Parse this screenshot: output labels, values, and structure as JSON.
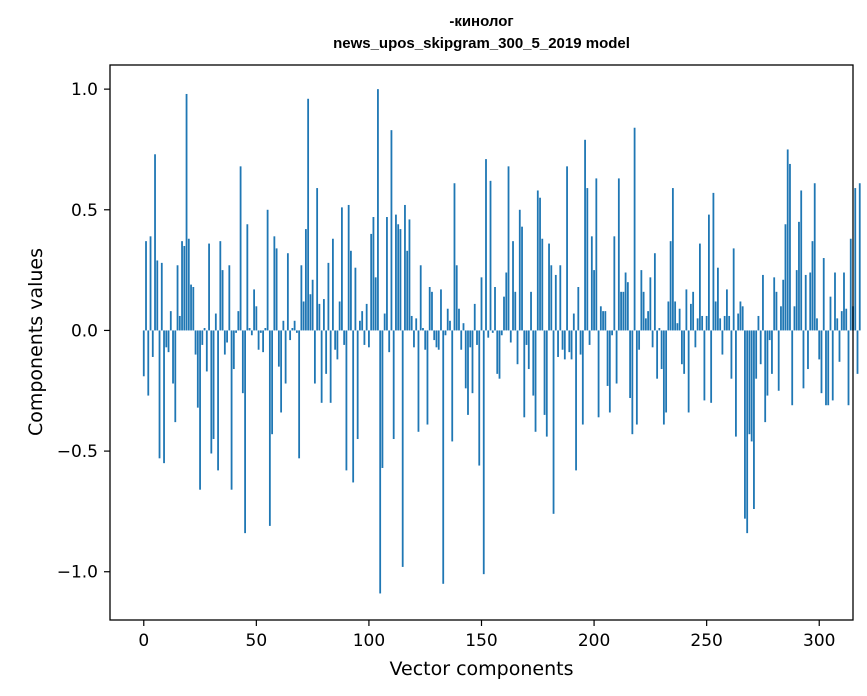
{
  "chart_data": {
    "type": "bar",
    "title_line1": "-кинолог",
    "title_line2": "news_upos_skipgram_300_5_2019 model",
    "xlabel": "Vector components",
    "ylabel": "Components values",
    "xlim": [
      -15,
      315
    ],
    "ylim": [
      -1.2,
      1.1
    ],
    "x_ticks": [
      0,
      50,
      100,
      150,
      200,
      250,
      300
    ],
    "x_tick_labels": [
      "0",
      "50",
      "100",
      "150",
      "200",
      "250",
      "300"
    ],
    "y_ticks": [
      -1.0,
      -0.5,
      0.0,
      0.5,
      1.0
    ],
    "y_tick_labels": [
      "−1.0",
      "−0.5",
      "0.0",
      "0.5",
      "1.0"
    ],
    "bar_color": "#1f77b4",
    "values": [
      -0.19,
      0.37,
      -0.27,
      0.39,
      -0.11,
      0.73,
      0.29,
      -0.53,
      0.28,
      -0.55,
      -0.07,
      -0.09,
      0.08,
      -0.22,
      -0.38,
      0.27,
      0.06,
      0.37,
      0.35,
      0.98,
      0.38,
      0.19,
      0.18,
      -0.1,
      -0.32,
      -0.66,
      -0.06,
      0.01,
      -0.17,
      0.36,
      -0.51,
      -0.45,
      0.07,
      -0.58,
      0.37,
      0.25,
      -0.1,
      -0.05,
      0.27,
      -0.66,
      -0.16,
      -0.01,
      0.08,
      0.68,
      -0.26,
      -0.84,
      0.44,
      0.01,
      -0.02,
      0.17,
      0.1,
      -0.08,
      -0.01,
      -0.09,
      0.01,
      0.5,
      -0.81,
      -0.43,
      0.39,
      0.34,
      -0.15,
      -0.34,
      0.04,
      -0.22,
      0.32,
      -0.04,
      0.01,
      0.04,
      -0.01,
      -0.53,
      0.27,
      0.12,
      0.42,
      0.96,
      0.15,
      0.21,
      -0.22,
      0.59,
      0.11,
      -0.3,
      0.13,
      -0.18,
      0.28,
      -0.3,
      0.38,
      -0.08,
      -0.12,
      0.12,
      0.51,
      -0.06,
      -0.58,
      0.52,
      0.33,
      -0.63,
      0.26,
      -0.45,
      0.04,
      0.08,
      -0.06,
      0.11,
      -0.07,
      0.4,
      0.47,
      0.22,
      1.0,
      -1.09,
      -0.57,
      0.07,
      0.47,
      -0.09,
      0.83,
      -0.45,
      0.48,
      0.44,
      0.42,
      -0.98,
      0.52,
      0.33,
      0.46,
      0.06,
      -0.07,
      0.05,
      -0.42,
      0.27,
      0.01,
      -0.08,
      -0.39,
      0.18,
      0.16,
      -0.04,
      -0.07,
      -0.08,
      0.17,
      -1.05,
      -0.02,
      0.09,
      0.04,
      -0.46,
      0.61,
      0.27,
      0.09,
      -0.08,
      0.03,
      -0.24,
      -0.35,
      -0.07,
      -0.26,
      0.11,
      -0.06,
      -0.56,
      0.22,
      -1.01,
      0.71,
      -0.03,
      0.62,
      -0.01,
      0.18,
      -0.18,
      -0.2,
      -0.02,
      0.14,
      0.24,
      0.68,
      -0.05,
      0.37,
      0.16,
      -0.14,
      0.5,
      0.43,
      -0.36,
      -0.06,
      -0.16,
      0.16,
      -0.27,
      -0.42,
      0.58,
      0.55,
      0.38,
      -0.35,
      -0.44,
      0.36,
      0.27,
      -0.76,
      0.23,
      -0.11,
      0.27,
      -0.08,
      -0.12,
      0.68,
      -0.09,
      -0.12,
      0.07,
      -0.58,
      0.18,
      -0.1,
      -0.39,
      0.79,
      0.59,
      -0.06,
      0.39,
      0.25,
      0.63,
      -0.36,
      0.1,
      0.08,
      0.08,
      -0.23,
      -0.34,
      -0.02,
      0.39,
      -0.22,
      0.63,
      0.16,
      0.16,
      0.24,
      0.2,
      -0.28,
      -0.43,
      0.84,
      -0.39,
      -0.08,
      0.25,
      0.16,
      0.05,
      0.08,
      0.22,
      -0.07,
      0.32,
      -0.2,
      0.01,
      -0.16,
      -0.39,
      -0.34,
      0.12,
      0.37,
      0.59,
      0.12,
      0.03,
      0.09,
      -0.14,
      -0.18,
      0.17,
      -0.34,
      0.11,
      0.16,
      -0.07,
      0.05,
      0.36,
      0.06,
      -0.29,
      0.06,
      0.48,
      -0.3,
      0.57,
      0.12,
      0.26,
      0.05,
      -0.1,
      0.06,
      0.17,
      0.06,
      -0.2,
      0.34,
      -0.44,
      0.07,
      0.12,
      0.1,
      -0.78,
      -0.84,
      -0.43,
      -0.46,
      -0.74,
      -0.2,
      0.06,
      -0.14,
      0.23,
      -0.38,
      -0.27,
      -0.04,
      -0.18,
      0.22,
      0.16,
      -0.25,
      0.1,
      0.21,
      0.44,
      0.75,
      0.69,
      -0.31,
      0.1,
      0.25,
      0.45,
      0.58,
      -0.24,
      0.23,
      -0.16,
      0.24,
      0.37,
      0.61,
      0.05,
      -0.12,
      -0.26,
      0.3,
      -0.31,
      -0.31,
      0.14,
      -0.29,
      0.24,
      0.05,
      -0.13,
      0.08,
      0.24,
      0.09,
      -0.31,
      0.38,
      0.1,
      0.59,
      -0.18,
      0.61
    ]
  }
}
